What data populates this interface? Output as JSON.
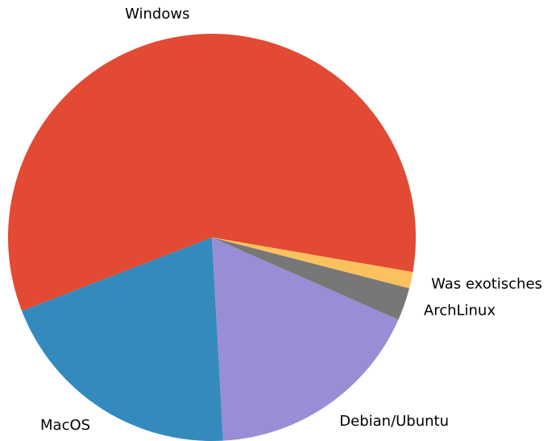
{
  "chart_data": {
    "type": "pie",
    "categories": [
      "Windows",
      "MacOS",
      "Debian/Ubuntu",
      "ArchLinux",
      "Was exotisches"
    ],
    "values": [
      58.6,
      20,
      17.5,
      2.6,
      1.3
    ],
    "colors": [
      "#E24A33",
      "#348ABD",
      "#988ED5",
      "#777777",
      "#FBC15E"
    ]
  }
}
